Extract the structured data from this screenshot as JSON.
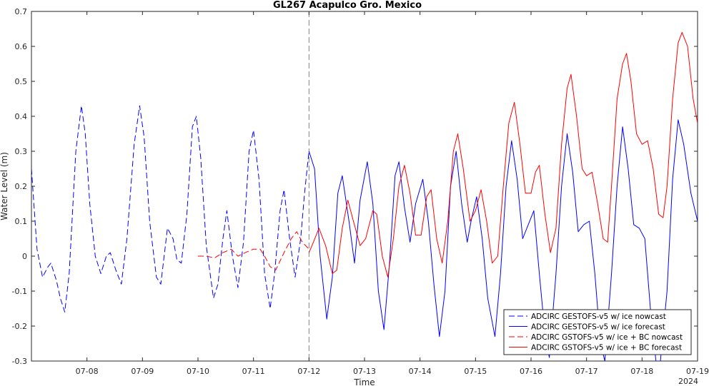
{
  "chart_data": {
    "type": "line",
    "title": "GL267 Acapulco Gro. Mexico",
    "xlabel": "Time",
    "ylabel": "Water Level (m)",
    "year_label": "2024",
    "xlim": [
      7,
      19
    ],
    "ylim": [
      -0.3,
      0.7
    ],
    "yticks": [
      "-0.3",
      "-0.2",
      "-0.1",
      "0",
      "0.1",
      "0.2",
      "0.3",
      "0.4",
      "0.5",
      "0.6",
      "0.7"
    ],
    "xticks": [
      {
        "x": 8,
        "label": "07-08"
      },
      {
        "x": 9,
        "label": "07-09"
      },
      {
        "x": 10,
        "label": "07-10"
      },
      {
        "x": 11,
        "label": "07-11"
      },
      {
        "x": 12,
        "label": "07-12"
      },
      {
        "x": 13,
        "label": "07-13"
      },
      {
        "x": 14,
        "label": "07-14"
      },
      {
        "x": 15,
        "label": "07-15"
      },
      {
        "x": 16,
        "label": "07-16"
      },
      {
        "x": 17,
        "label": "07-17"
      },
      {
        "x": 18,
        "label": "07-18"
      },
      {
        "x": 19,
        "label": "07-19"
      }
    ],
    "forecast_start": 12,
    "grid": false,
    "legend_position": "bottom-right",
    "series": [
      {
        "name": "ADCIRC GESTOFS-v5 w/ ice nowcast",
        "color": "#0000ff",
        "dash": "dashed",
        "points": [
          [
            7.0,
            0.25
          ],
          [
            7.1,
            0.02
          ],
          [
            7.2,
            -0.06
          ],
          [
            7.3,
            -0.03
          ],
          [
            7.35,
            -0.02
          ],
          [
            7.45,
            -0.07
          ],
          [
            7.52,
            -0.12
          ],
          [
            7.6,
            -0.16
          ],
          [
            7.68,
            -0.05
          ],
          [
            7.8,
            0.3
          ],
          [
            7.9,
            0.43
          ],
          [
            7.97,
            0.35
          ],
          [
            8.05,
            0.15
          ],
          [
            8.15,
            0.0
          ],
          [
            8.25,
            -0.05
          ],
          [
            8.35,
            0.0
          ],
          [
            8.42,
            0.01
          ],
          [
            8.52,
            -0.04
          ],
          [
            8.62,
            -0.08
          ],
          [
            8.72,
            0.05
          ],
          [
            8.85,
            0.32
          ],
          [
            8.95,
            0.43
          ],
          [
            9.03,
            0.34
          ],
          [
            9.13,
            0.1
          ],
          [
            9.25,
            -0.06
          ],
          [
            9.33,
            -0.08
          ],
          [
            9.45,
            0.08
          ],
          [
            9.55,
            0.05
          ],
          [
            9.62,
            -0.01
          ],
          [
            9.7,
            -0.02
          ],
          [
            9.8,
            0.12
          ],
          [
            9.9,
            0.37
          ],
          [
            9.97,
            0.4
          ],
          [
            10.05,
            0.28
          ],
          [
            10.15,
            0.03
          ],
          [
            10.28,
            -0.12
          ],
          [
            10.36,
            -0.08
          ],
          [
            10.45,
            0.05
          ],
          [
            10.52,
            0.13
          ],
          [
            10.62,
            0.0
          ],
          [
            10.72,
            -0.09
          ],
          [
            10.82,
            0.04
          ],
          [
            10.92,
            0.3
          ],
          [
            11.0,
            0.36
          ],
          [
            11.1,
            0.22
          ],
          [
            11.2,
            -0.05
          ],
          [
            11.3,
            -0.15
          ],
          [
            11.38,
            -0.05
          ],
          [
            11.48,
            0.13
          ],
          [
            11.55,
            0.19
          ],
          [
            11.65,
            0.05
          ],
          [
            11.75,
            -0.06
          ],
          [
            11.85,
            0.05
          ],
          [
            11.92,
            0.18
          ],
          [
            12.0,
            0.3
          ]
        ]
      },
      {
        "name": "ADCIRC GESTOFS-v5 w/ ice forecast",
        "color": "#0000ff",
        "dash": "solid",
        "points": [
          [
            12.0,
            0.3
          ],
          [
            12.1,
            0.25
          ],
          [
            12.2,
            0.0
          ],
          [
            12.32,
            -0.18
          ],
          [
            12.42,
            -0.06
          ],
          [
            12.52,
            0.18
          ],
          [
            12.6,
            0.23
          ],
          [
            12.72,
            0.1
          ],
          [
            12.82,
            -0.02
          ],
          [
            12.92,
            0.16
          ],
          [
            13.05,
            0.27
          ],
          [
            13.15,
            0.15
          ],
          [
            13.25,
            -0.1
          ],
          [
            13.35,
            -0.21
          ],
          [
            13.45,
            -0.02
          ],
          [
            13.55,
            0.23
          ],
          [
            13.62,
            0.27
          ],
          [
            13.72,
            0.14
          ],
          [
            13.82,
            0.04
          ],
          [
            13.92,
            0.15
          ],
          [
            14.05,
            0.22
          ],
          [
            14.15,
            0.1
          ],
          [
            14.25,
            -0.08
          ],
          [
            14.35,
            -0.23
          ],
          [
            14.45,
            -0.1
          ],
          [
            14.55,
            0.2
          ],
          [
            14.65,
            0.3
          ],
          [
            14.75,
            0.15
          ],
          [
            14.85,
            0.04
          ],
          [
            14.92,
            0.1
          ],
          [
            15.02,
            0.17
          ],
          [
            15.12,
            0.05
          ],
          [
            15.22,
            -0.12
          ],
          [
            15.35,
            -0.23
          ],
          [
            15.45,
            -0.05
          ],
          [
            15.55,
            0.2
          ],
          [
            15.65,
            0.33
          ],
          [
            15.75,
            0.22
          ],
          [
            15.85,
            0.05
          ],
          [
            15.95,
            0.09
          ],
          [
            16.05,
            0.13
          ],
          [
            16.15,
            -0.05
          ],
          [
            16.25,
            -0.22
          ],
          [
            16.33,
            -0.29
          ],
          [
            16.45,
            -0.05
          ],
          [
            16.55,
            0.2
          ],
          [
            16.65,
            0.35
          ],
          [
            16.75,
            0.24
          ],
          [
            16.85,
            0.07
          ],
          [
            16.95,
            0.09
          ],
          [
            17.05,
            0.1
          ],
          [
            17.15,
            -0.05
          ],
          [
            17.25,
            -0.25
          ],
          [
            17.33,
            -0.3
          ],
          [
            17.45,
            -0.05
          ],
          [
            17.55,
            0.2
          ],
          [
            17.65,
            0.37
          ],
          [
            17.75,
            0.25
          ],
          [
            17.85,
            0.09
          ],
          [
            17.95,
            0.08
          ],
          [
            18.05,
            0.05
          ],
          [
            18.15,
            -0.15
          ],
          [
            18.25,
            -0.3
          ],
          [
            18.33,
            -0.3
          ],
          [
            18.45,
            -0.1
          ],
          [
            18.55,
            0.22
          ],
          [
            18.65,
            0.39
          ],
          [
            18.75,
            0.32
          ],
          [
            18.88,
            0.18
          ],
          [
            19.0,
            0.1
          ]
        ]
      },
      {
        "name": "ADCIRC GSTOFS-v5 w/ ice + BC nowcast",
        "color": "#ff0000",
        "dash": "dashed",
        "points": [
          [
            10.0,
            0.0
          ],
          [
            10.15,
            0.0
          ],
          [
            10.3,
            -0.005
          ],
          [
            10.45,
            0.01
          ],
          [
            10.6,
            0.02
          ],
          [
            10.72,
            0.0
          ],
          [
            10.85,
            0.01
          ],
          [
            11.0,
            0.02
          ],
          [
            11.12,
            0.02
          ],
          [
            11.2,
            0.0
          ],
          [
            11.3,
            -0.03
          ],
          [
            11.4,
            -0.04
          ],
          [
            11.55,
            0.01
          ],
          [
            11.68,
            0.05
          ],
          [
            11.78,
            0.07
          ],
          [
            11.88,
            0.04
          ],
          [
            12.0,
            0.02
          ]
        ]
      },
      {
        "name": "ADCIRC GSTOFS-v5 w/ ice + BC forecast",
        "color": "#ff0000",
        "dash": "solid",
        "points": [
          [
            12.0,
            0.01
          ],
          [
            12.08,
            0.04
          ],
          [
            12.18,
            0.08
          ],
          [
            12.3,
            0.03
          ],
          [
            12.42,
            -0.05
          ],
          [
            12.5,
            -0.04
          ],
          [
            12.6,
            0.08
          ],
          [
            12.7,
            0.16
          ],
          [
            12.8,
            0.1
          ],
          [
            12.92,
            0.03
          ],
          [
            13.02,
            0.05
          ],
          [
            13.15,
            0.13
          ],
          [
            13.22,
            0.12
          ],
          [
            13.32,
            0.0
          ],
          [
            13.42,
            -0.06
          ],
          [
            13.52,
            0.05
          ],
          [
            13.62,
            0.2
          ],
          [
            13.72,
            0.26
          ],
          [
            13.82,
            0.18
          ],
          [
            13.92,
            0.06
          ],
          [
            14.02,
            0.06
          ],
          [
            14.12,
            0.17
          ],
          [
            14.2,
            0.19
          ],
          [
            14.3,
            0.05
          ],
          [
            14.4,
            -0.02
          ],
          [
            14.5,
            0.1
          ],
          [
            14.6,
            0.3
          ],
          [
            14.68,
            0.35
          ],
          [
            14.78,
            0.25
          ],
          [
            14.9,
            0.1
          ],
          [
            15.0,
            0.13
          ],
          [
            15.1,
            0.19
          ],
          [
            15.2,
            0.1
          ],
          [
            15.3,
            -0.02
          ],
          [
            15.4,
            0.0
          ],
          [
            15.5,
            0.2
          ],
          [
            15.6,
            0.38
          ],
          [
            15.7,
            0.44
          ],
          [
            15.8,
            0.32
          ],
          [
            15.9,
            0.18
          ],
          [
            16.0,
            0.18
          ],
          [
            16.08,
            0.24
          ],
          [
            16.15,
            0.26
          ],
          [
            16.25,
            0.12
          ],
          [
            16.35,
            0.01
          ],
          [
            16.45,
            0.08
          ],
          [
            16.55,
            0.32
          ],
          [
            16.65,
            0.48
          ],
          [
            16.72,
            0.52
          ],
          [
            16.82,
            0.4
          ],
          [
            16.92,
            0.25
          ],
          [
            17.0,
            0.23
          ],
          [
            17.1,
            0.24
          ],
          [
            17.2,
            0.15
          ],
          [
            17.3,
            0.05
          ],
          [
            17.38,
            0.04
          ],
          [
            17.45,
            0.2
          ],
          [
            17.55,
            0.45
          ],
          [
            17.65,
            0.55
          ],
          [
            17.72,
            0.58
          ],
          [
            17.8,
            0.5
          ],
          [
            17.9,
            0.35
          ],
          [
            18.0,
            0.32
          ],
          [
            18.1,
            0.33
          ],
          [
            18.2,
            0.25
          ],
          [
            18.3,
            0.12
          ],
          [
            18.38,
            0.11
          ],
          [
            18.45,
            0.2
          ],
          [
            18.55,
            0.45
          ],
          [
            18.65,
            0.61
          ],
          [
            18.72,
            0.64
          ],
          [
            18.82,
            0.6
          ],
          [
            18.92,
            0.45
          ],
          [
            19.0,
            0.38
          ]
        ]
      }
    ]
  }
}
